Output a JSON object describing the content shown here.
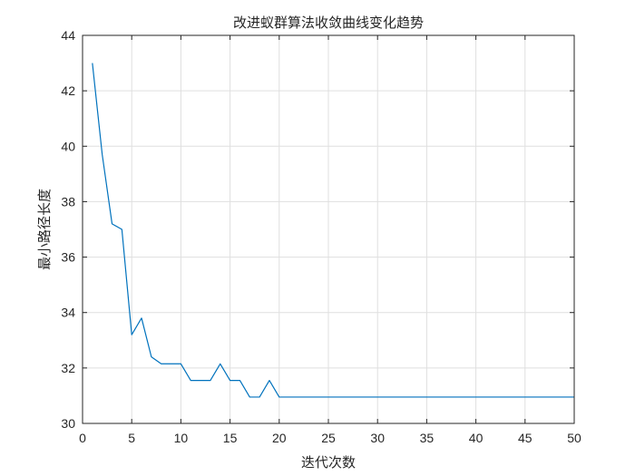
{
  "chart_data": {
    "type": "line",
    "title": "改进蚁群算法收敛曲线变化趋势",
    "xlabel": "迭代次数",
    "ylabel": "最小路径长度",
    "xlim": [
      0,
      50
    ],
    "ylim": [
      30,
      44
    ],
    "xticks": [
      "0",
      "5",
      "10",
      "15",
      "20",
      "25",
      "30",
      "35",
      "40",
      "45",
      "50"
    ],
    "yticks": [
      "30",
      "32",
      "34",
      "36",
      "38",
      "40",
      "42",
      "44"
    ],
    "grid": true,
    "line_color": "#0072BD",
    "series": [
      {
        "x": [
          1,
          2,
          3,
          4,
          5,
          6,
          7,
          8,
          9,
          10,
          11,
          12,
          13,
          14,
          15,
          16,
          17,
          18,
          19,
          20,
          21,
          22,
          23,
          24,
          25,
          26,
          27,
          28,
          29,
          30,
          31,
          32,
          33,
          34,
          35,
          36,
          37,
          38,
          39,
          40,
          41,
          42,
          43,
          44,
          45,
          46,
          47,
          48,
          49,
          50
        ],
        "values": [
          43.0,
          39.7,
          37.2,
          37.0,
          33.2,
          33.8,
          32.4,
          32.15,
          32.15,
          32.15,
          31.55,
          31.55,
          31.55,
          32.15,
          31.55,
          31.55,
          30.95,
          30.95,
          31.55,
          30.95,
          30.95,
          30.95,
          30.95,
          30.95,
          30.95,
          30.95,
          30.95,
          30.95,
          30.95,
          30.95,
          30.95,
          30.95,
          30.95,
          30.95,
          30.95,
          30.95,
          30.95,
          30.95,
          30.95,
          30.95,
          30.95,
          30.95,
          30.95,
          30.95,
          30.95,
          30.95,
          30.95,
          30.95,
          30.95,
          30.95
        ]
      }
    ]
  }
}
